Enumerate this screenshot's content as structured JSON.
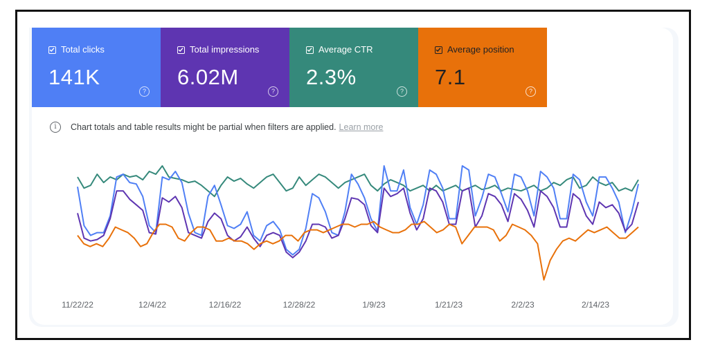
{
  "metrics": [
    {
      "label": "Total clicks",
      "value": "141K",
      "color": "#4f7ff5",
      "checked": true
    },
    {
      "label": "Total impressions",
      "value": "6.02M",
      "color": "#5e35b1",
      "checked": true
    },
    {
      "label": "Average CTR",
      "value": "2.3%",
      "color": "#35897b",
      "checked": true
    },
    {
      "label": "Average position",
      "value": "7.1",
      "color": "#e8710a",
      "checked": true
    }
  ],
  "help_glyph": "?",
  "info_glyph": "i",
  "notice": {
    "text": "Chart totals and table results might be partial when filters are applied.",
    "link": "Learn more"
  },
  "chart_data": {
    "type": "line",
    "x_tick_labels": [
      "11/22/22",
      "12/4/22",
      "12/16/22",
      "12/28/22",
      "1/9/23",
      "1/21/23",
      "2/2/23",
      "2/14/23"
    ],
    "x_start": "11/22/22",
    "x_end": "2/21/23",
    "grid": false,
    "legend": "none",
    "series": [
      {
        "color": "#35897b",
        "values": [
          70,
          62,
          64,
          72,
          66,
          70,
          68,
          72,
          70,
          71,
          68,
          74,
          72,
          78,
          70,
          69,
          68,
          66,
          67,
          64,
          60,
          56,
          64,
          70,
          67,
          69,
          65,
          62,
          66,
          70,
          72,
          66,
          60,
          62,
          70,
          64,
          68,
          72,
          70,
          66,
          62,
          66,
          68,
          70,
          72,
          64,
          60,
          65,
          68,
          66,
          64,
          60,
          62,
          64,
          60,
          64,
          60,
          62,
          64,
          60,
          62,
          64,
          61,
          62,
          64,
          60,
          62,
          61,
          60,
          62,
          64,
          60,
          62,
          66,
          64,
          68,
          70,
          62,
          64,
          70,
          66,
          64,
          66,
          60,
          62,
          60,
          68
        ]
      },
      {
        "color": "#4f7ff5",
        "values": [
          63,
          35,
          28,
          30,
          30,
          42,
          70,
          72,
          66,
          65,
          56,
          35,
          30,
          70,
          68,
          74,
          66,
          44,
          30,
          28,
          56,
          64,
          50,
          35,
          33,
          36,
          45,
          28,
          24,
          35,
          38,
          32,
          18,
          14,
          18,
          33,
          58,
          55,
          45,
          30,
          28,
          45,
          72,
          65,
          55,
          40,
          31,
          78,
          60,
          60,
          75,
          48,
          36,
          50,
          75,
          72,
          62,
          40,
          40,
          78,
          75,
          42,
          55,
          72,
          70,
          58,
          45,
          72,
          70,
          60,
          42,
          74,
          70,
          62,
          40,
          40,
          72,
          68,
          52,
          42,
          70,
          70,
          62,
          52,
          30,
          45,
          65
        ]
      },
      {
        "color": "#5e35b1",
        "values": [
          44,
          26,
          24,
          25,
          28,
          40,
          60,
          60,
          54,
          50,
          46,
          30,
          29,
          55,
          52,
          56,
          48,
          30,
          28,
          26,
          38,
          44,
          40,
          28,
          24,
          27,
          34,
          26,
          20,
          28,
          30,
          28,
          16,
          12,
          16,
          24,
          36,
          36,
          34,
          26,
          28,
          40,
          55,
          54,
          50,
          35,
          30,
          62,
          56,
          58,
          62,
          44,
          32,
          40,
          62,
          60,
          52,
          36,
          36,
          60,
          62,
          34,
          42,
          58,
          56,
          50,
          38,
          58,
          54,
          46,
          34,
          60,
          56,
          48,
          34,
          34,
          58,
          54,
          42,
          36,
          52,
          48,
          50,
          44,
          31,
          36,
          52
        ]
      },
      {
        "color": "#e8710a",
        "values": [
          28,
          22,
          20,
          22,
          20,
          26,
          34,
          32,
          30,
          26,
          20,
          22,
          30,
          36,
          36,
          34,
          26,
          24,
          30,
          34,
          34,
          32,
          24,
          24,
          26,
          24,
          24,
          22,
          18,
          22,
          24,
          22,
          24,
          28,
          28,
          24,
          30,
          32,
          32,
          30,
          32,
          34,
          36,
          36,
          34,
          36,
          36,
          38,
          34,
          32,
          30,
          30,
          32,
          36,
          36,
          38,
          34,
          30,
          32,
          36,
          34,
          22,
          28,
          34,
          34,
          34,
          32,
          24,
          28,
          36,
          34,
          32,
          28,
          22,
          -4,
          10,
          18,
          24,
          26,
          24,
          28,
          32,
          30,
          32,
          34,
          30,
          26,
          26,
          30,
          34
        ]
      }
    ]
  }
}
